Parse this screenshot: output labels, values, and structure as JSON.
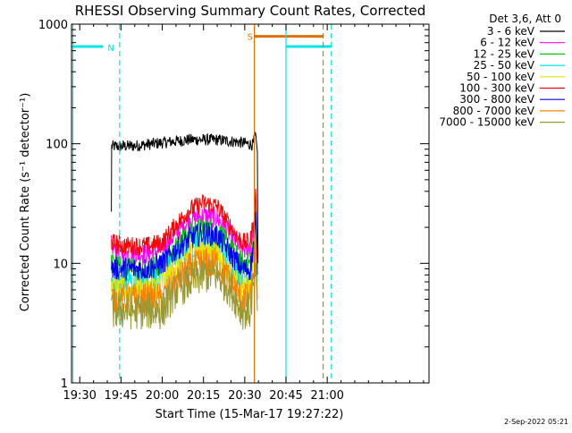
{
  "chart_data": {
    "type": "line",
    "title": "RHESSI Observing Summary Count Rates, Corrected",
    "xlabel": "Start Time (15-Mar-17 19:27:22)",
    "ylabel": "Corrected Count Rate (s⁻¹ detector⁻¹)",
    "y_scale": "log",
    "ylim": [
      1,
      1000
    ],
    "x_range_minutes": [
      1167,
      1297
    ],
    "x_ticks": [
      {
        "label": "19:30",
        "minute": 1170
      },
      {
        "label": "19:45",
        "minute": 1185
      },
      {
        "label": "20:00",
        "minute": 1200
      },
      {
        "label": "20:15",
        "minute": 1215
      },
      {
        "label": "20:30",
        "minute": 1230
      },
      {
        "label": "20:45",
        "minute": 1245
      },
      {
        "label": "21:00",
        "minute": 1260
      }
    ],
    "y_ticks": [
      {
        "label": "1",
        "value": 1
      },
      {
        "label": "10",
        "value": 10
      },
      {
        "label": "100",
        "value": 100
      },
      {
        "label": "1000",
        "value": 1000
      }
    ],
    "legend_header": "Det 3,6, Att 0",
    "legend_position": "top-right-outside",
    "series": [
      {
        "name": "3 - 6 keV",
        "color": "#000000",
        "values": [
          [
            1181.5,
            27
          ],
          [
            1181.6,
            95
          ],
          [
            1190,
            96
          ],
          [
            1200,
            102
          ],
          [
            1210,
            108
          ],
          [
            1220,
            108
          ],
          [
            1228,
            103
          ],
          [
            1233,
            98
          ],
          [
            1234,
            120
          ],
          [
            1234.6,
            85
          ],
          [
            1234.8,
            10
          ]
        ]
      },
      {
        "name": "6 - 12 keV",
        "color": "#ff00ff",
        "values": [
          [
            1181.5,
            14
          ],
          [
            1186,
            12
          ],
          [
            1195,
            12
          ],
          [
            1200,
            13
          ],
          [
            1205,
            18
          ],
          [
            1210,
            23
          ],
          [
            1215,
            25
          ],
          [
            1220,
            24
          ],
          [
            1225,
            17
          ],
          [
            1229,
            13
          ],
          [
            1232,
            13
          ],
          [
            1233.5,
            22
          ],
          [
            1234,
            38
          ],
          [
            1234.6,
            10
          ]
        ]
      },
      {
        "name": "12 - 25 keV",
        "color": "#00cc00",
        "values": [
          [
            1181.5,
            10
          ],
          [
            1186,
            9
          ],
          [
            1195,
            9
          ],
          [
            1200,
            10
          ],
          [
            1205,
            14
          ],
          [
            1210,
            18
          ],
          [
            1215,
            20
          ],
          [
            1220,
            19
          ],
          [
            1225,
            13
          ],
          [
            1229,
            10
          ],
          [
            1232,
            10
          ],
          [
            1233.5,
            18
          ],
          [
            1234,
            30
          ],
          [
            1234.6,
            9
          ]
        ]
      },
      {
        "name": "25 - 50 keV",
        "color": "#00e5e5",
        "values": [
          [
            1181.5,
            7
          ],
          [
            1186,
            7
          ],
          [
            1195,
            7
          ],
          [
            1200,
            8
          ],
          [
            1205,
            11
          ],
          [
            1210,
            14
          ],
          [
            1215,
            16
          ],
          [
            1220,
            15
          ],
          [
            1225,
            10
          ],
          [
            1229,
            8
          ],
          [
            1232,
            8
          ],
          [
            1233.5,
            14
          ],
          [
            1234,
            24
          ],
          [
            1234.6,
            7
          ]
        ]
      },
      {
        "name": "50 - 100 keV",
        "color": "#e5e500",
        "values": [
          [
            1181.5,
            6
          ],
          [
            1186,
            6
          ],
          [
            1195,
            6
          ],
          [
            1200,
            7
          ],
          [
            1205,
            9
          ],
          [
            1210,
            12
          ],
          [
            1215,
            13
          ],
          [
            1220,
            12
          ],
          [
            1225,
            8
          ],
          [
            1229,
            6
          ],
          [
            1232,
            6
          ],
          [
            1233.5,
            11
          ],
          [
            1234,
            18
          ],
          [
            1234.6,
            6
          ]
        ]
      },
      {
        "name": "100 - 300 keV",
        "color": "#ff0000",
        "values": [
          [
            1181.5,
            15
          ],
          [
            1186,
            14
          ],
          [
            1195,
            14
          ],
          [
            1200,
            15
          ],
          [
            1205,
            21
          ],
          [
            1210,
            28
          ],
          [
            1215,
            32
          ],
          [
            1220,
            30
          ],
          [
            1225,
            20
          ],
          [
            1229,
            15
          ],
          [
            1232,
            15
          ],
          [
            1233.5,
            25
          ],
          [
            1234,
            42
          ],
          [
            1234.6,
            11
          ]
        ]
      },
      {
        "name": "300 - 800 keV",
        "color": "#0000ee",
        "values": [
          [
            1181.5,
            9
          ],
          [
            1186,
            9
          ],
          [
            1195,
            9
          ],
          [
            1200,
            10
          ],
          [
            1205,
            13
          ],
          [
            1210,
            16
          ],
          [
            1215,
            18
          ],
          [
            1220,
            17
          ],
          [
            1225,
            12
          ],
          [
            1229,
            9
          ],
          [
            1232,
            9
          ],
          [
            1233.5,
            16
          ],
          [
            1234,
            27
          ],
          [
            1234.6,
            8
          ]
        ]
      },
      {
        "name": "800 - 7000 keV",
        "color": "#ff8000",
        "values": [
          [
            1181.5,
            5
          ],
          [
            1186,
            5
          ],
          [
            1195,
            5
          ],
          [
            1200,
            5
          ],
          [
            1205,
            7
          ],
          [
            1210,
            9
          ],
          [
            1215,
            10
          ],
          [
            1220,
            10
          ],
          [
            1225,
            7
          ],
          [
            1229,
            5
          ],
          [
            1232,
            5
          ],
          [
            1233.5,
            9
          ],
          [
            1234,
            15
          ],
          [
            1234.6,
            5
          ]
        ]
      },
      {
        "name": "7000 - 15000 keV",
        "color": "#999933",
        "values": [
          [
            1181.5,
            4
          ],
          [
            1186,
            4
          ],
          [
            1195,
            4
          ],
          [
            1200,
            4
          ],
          [
            1205,
            6
          ],
          [
            1210,
            7
          ],
          [
            1215,
            8
          ],
          [
            1220,
            8
          ],
          [
            1225,
            6
          ],
          [
            1229,
            4
          ],
          [
            1232,
            4
          ],
          [
            1234,
            10
          ],
          [
            1234.6,
            4
          ]
        ]
      }
    ],
    "annotations": [
      {
        "kind": "night-bar",
        "label": "N",
        "color": "#00e5e5",
        "x_start": 1167,
        "x_end": 1178.5,
        "y": 650
      },
      {
        "kind": "night-bar",
        "color": "#00e5e5",
        "x_start": 1245,
        "x_end": 1261.5,
        "y": 650
      },
      {
        "kind": "saa-bar",
        "label": "S",
        "color": "#e07000",
        "x_start": 1233.5,
        "x_end": 1258.5,
        "y": 790
      },
      {
        "kind": "vline-solid",
        "color": "#00e5e5",
        "x": 1167.5
      },
      {
        "kind": "vline-dashed",
        "color": "#00e5e5",
        "x": 1184.5
      },
      {
        "kind": "vline-solid",
        "color": "#e07000",
        "x": 1233.5
      },
      {
        "kind": "vline-solid",
        "color": "#00e5e5",
        "x": 1245
      },
      {
        "kind": "vline-dashed",
        "color": "#e07000",
        "x": 1258.5
      },
      {
        "kind": "vline-dashed",
        "color": "#00e5e5",
        "x": 1261.5
      }
    ],
    "footer_date": "2-Sep-2022 05:21"
  }
}
